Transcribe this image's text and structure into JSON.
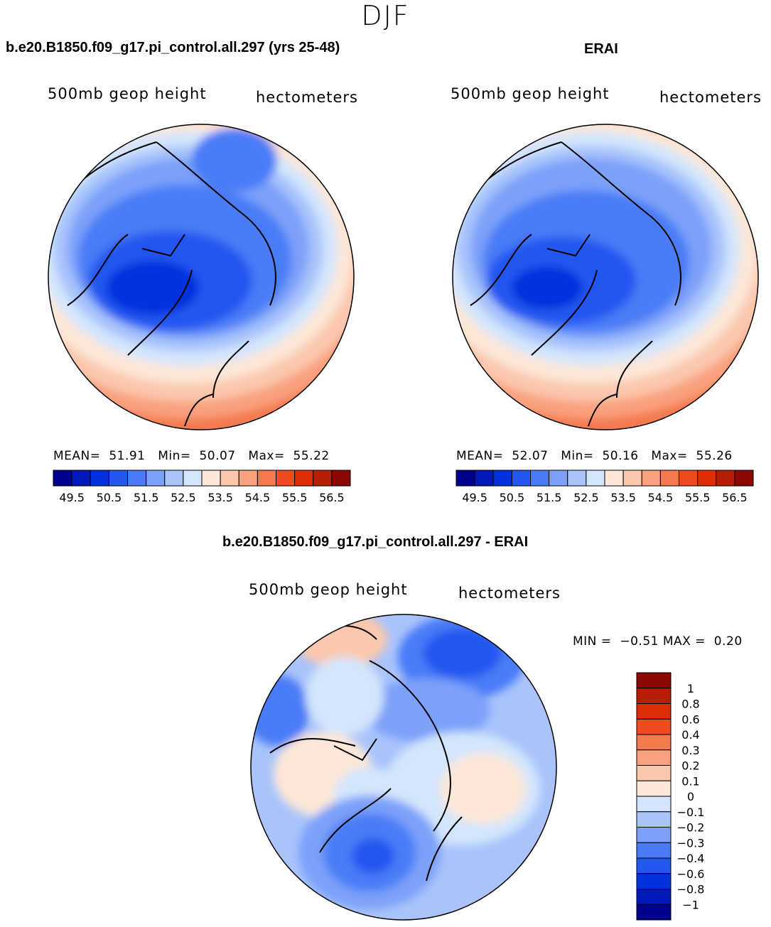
{
  "season": "DJF",
  "panels": [
    {
      "id": "model",
      "title": "b.e20.B1850.f09_g17.pi_control.all.297 (yrs 25-48)",
      "field": "500mb geop height",
      "units": "hectometers",
      "stats": {
        "mean_label": "MEAN=",
        "mean": "51.91",
        "min_label": "Min=",
        "min": "50.07",
        "max_label": "Max=",
        "max": "55.22"
      },
      "colorbar_labels": [
        "49.5",
        "50.5",
        "51.5",
        "52.5",
        "53.5",
        "54.5",
        "55.5",
        "56.5"
      ]
    },
    {
      "id": "obs",
      "title": "ERAI",
      "field": "500mb geop height",
      "units": "hectometers",
      "stats": {
        "mean_label": "MEAN=",
        "mean": "52.07",
        "min_label": "Min=",
        "min": "50.16",
        "max_label": "Max=",
        "max": "55.26"
      },
      "colorbar_labels": [
        "49.5",
        "50.5",
        "51.5",
        "52.5",
        "53.5",
        "54.5",
        "55.5",
        "56.5"
      ]
    }
  ],
  "diff": {
    "title": "b.e20.B1850.f09_g17.pi_control.all.297 - ERAI",
    "field": "500mb geop height",
    "units": "hectometers",
    "minmax": {
      "min_label": "MIN =",
      "min": "−0.51",
      "max_label": "MAX =",
      "max": "0.20"
    },
    "colorbar_labels": [
      "1",
      "0.8",
      "0.6",
      "0.4",
      "0.3",
      "0.2",
      "0.1",
      "0",
      "−0.1",
      "−0.2",
      "−0.3",
      "−0.4",
      "−0.6",
      "−0.8",
      "−1"
    ]
  },
  "colors": {
    "abs_scale": [
      "#00008f",
      "#0019b8",
      "#0033dd",
      "#2457f0",
      "#4a7bf7",
      "#7ca1f9",
      "#a9c4fb",
      "#d4e6fd",
      "#fde7d8",
      "#fbc8ad",
      "#f9a07e",
      "#f4794f",
      "#ef4b22",
      "#de2e08",
      "#b81e04",
      "#8a0802"
    ],
    "diff_scale": [
      "#8a0802",
      "#b81e04",
      "#de2e08",
      "#ef4b22",
      "#f4794f",
      "#f9a07e",
      "#fbc8ad",
      "#fde7d8",
      "#d4e6fd",
      "#a9c4fb",
      "#7ca1f9",
      "#4a7bf7",
      "#2457f0",
      "#0033dd",
      "#0019b8",
      "#00008f"
    ]
  }
}
